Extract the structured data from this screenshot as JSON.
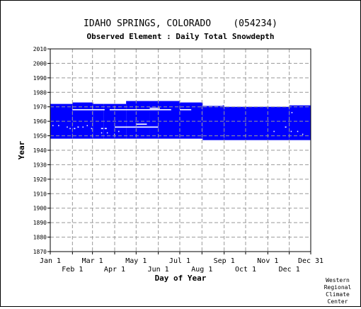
{
  "chart_data": {
    "type": "bar",
    "title": "IDAHO SPRINGS, COLORADO    (054234)",
    "subtitle": "Observed Element : Daily Total Snowdepth",
    "xlabel": "Day of Year",
    "ylabel": "Year",
    "xlim": [
      1,
      365
    ],
    "ylim": [
      1870,
      2010
    ],
    "grid": true,
    "yticks": [
      1870,
      1880,
      1890,
      1900,
      1910,
      1920,
      1930,
      1940,
      1950,
      1960,
      1970,
      1980,
      1990,
      2000,
      2010
    ],
    "xticks_top": [
      {
        "label": "Jan 1",
        "day": 1
      },
      {
        "label": "Mar 1",
        "day": 60
      },
      {
        "label": "May 1",
        "day": 121
      },
      {
        "label": "Jul 1",
        "day": 182
      },
      {
        "label": "Sep 1",
        "day": 244
      },
      {
        "label": "Nov 1",
        "day": 305
      },
      {
        "label": "Dec 31",
        "day": 365
      }
    ],
    "xticks_bottom": [
      {
        "label": "Feb 1",
        "day": 32
      },
      {
        "label": "Apr 1",
        "day": 91
      },
      {
        "label": "Jun 1",
        "day": 152
      },
      {
        "label": "Aug 1",
        "day": 213
      },
      {
        "label": "Oct 1",
        "day": 274
      },
      {
        "label": "Dec 1",
        "day": 335
      }
    ],
    "series_color": "#0000ff",
    "coverage": [
      {
        "day_start": 1,
        "day_end": 32,
        "year_start": 1948,
        "year_end": 1972
      },
      {
        "day_start": 32,
        "day_end": 61,
        "year_start": 1948,
        "year_end": 1973
      },
      {
        "day_start": 61,
        "day_end": 76,
        "year_start": 1948,
        "year_end": 1972
      },
      {
        "day_start": 76,
        "day_end": 107,
        "year_start": 1948,
        "year_end": 1972
      },
      {
        "day_start": 107,
        "day_end": 140,
        "year_start": 1948,
        "year_end": 1974
      },
      {
        "day_start": 140,
        "day_end": 182,
        "year_start": 1948,
        "year_end": 1974
      },
      {
        "day_start": 182,
        "day_end": 214,
        "year_start": 1948,
        "year_end": 1973
      },
      {
        "day_start": 214,
        "day_end": 244,
        "year_start": 1947,
        "year_end": 1971
      },
      {
        "day_start": 244,
        "day_end": 335,
        "year_start": 1947,
        "year_end": 1970
      },
      {
        "day_start": 335,
        "day_end": 365,
        "year_start": 1947,
        "year_end": 1971
      }
    ],
    "missing": [
      {
        "day_start": 32,
        "day_end": 77,
        "year": 1968
      },
      {
        "day_start": 84,
        "day_end": 140,
        "year": 1968
      },
      {
        "day_start": 140,
        "day_end": 154,
        "year": 1969
      },
      {
        "day_start": 140,
        "day_end": 170,
        "year": 1968
      },
      {
        "day_start": 182,
        "day_end": 198,
        "year": 1968
      },
      {
        "day_start": 214,
        "day_end": 242,
        "year": 1971
      },
      {
        "day_start": 91,
        "day_end": 152,
        "year": 1956
      },
      {
        "day_start": 121,
        "day_end": 136,
        "year": 1958
      },
      {
        "day_start": 4,
        "day_end": 5,
        "year": 1957
      },
      {
        "day_start": 12,
        "day_end": 13,
        "year": 1957
      },
      {
        "day_start": 24,
        "day_end": 25,
        "year": 1956
      },
      {
        "day_start": 28,
        "day_end": 29,
        "year": 1955
      },
      {
        "day_start": 34,
        "day_end": 36,
        "year": 1955
      },
      {
        "day_start": 39,
        "day_end": 41,
        "year": 1956
      },
      {
        "day_start": 46,
        "day_end": 47,
        "year": 1956
      },
      {
        "day_start": 52,
        "day_end": 53,
        "year": 1957
      },
      {
        "day_start": 58,
        "day_end": 59,
        "year": 1955
      },
      {
        "day_start": 72,
        "day_end": 75,
        "year": 1955
      },
      {
        "day_start": 77,
        "day_end": 80,
        "year": 1955
      },
      {
        "day_start": 72,
        "day_end": 73,
        "year": 1952
      },
      {
        "day_start": 80,
        "day_end": 81,
        "year": 1952
      },
      {
        "day_start": 90,
        "day_end": 91,
        "year": 1951
      },
      {
        "day_start": 96,
        "day_end": 97,
        "year": 1953
      },
      {
        "day_start": 313,
        "day_end": 314,
        "year": 1953
      },
      {
        "day_start": 329,
        "day_end": 331,
        "year": 1956
      },
      {
        "day_start": 337,
        "day_end": 338,
        "year": 1953
      },
      {
        "day_start": 338,
        "day_end": 339,
        "year": 1966
      },
      {
        "day_start": 346,
        "day_end": 347,
        "year": 1953
      },
      {
        "day_start": 353,
        "day_end": 354,
        "year": 1951
      }
    ]
  },
  "credit_lines": [
    "Western",
    "Regional",
    "Climate",
    "Center"
  ]
}
